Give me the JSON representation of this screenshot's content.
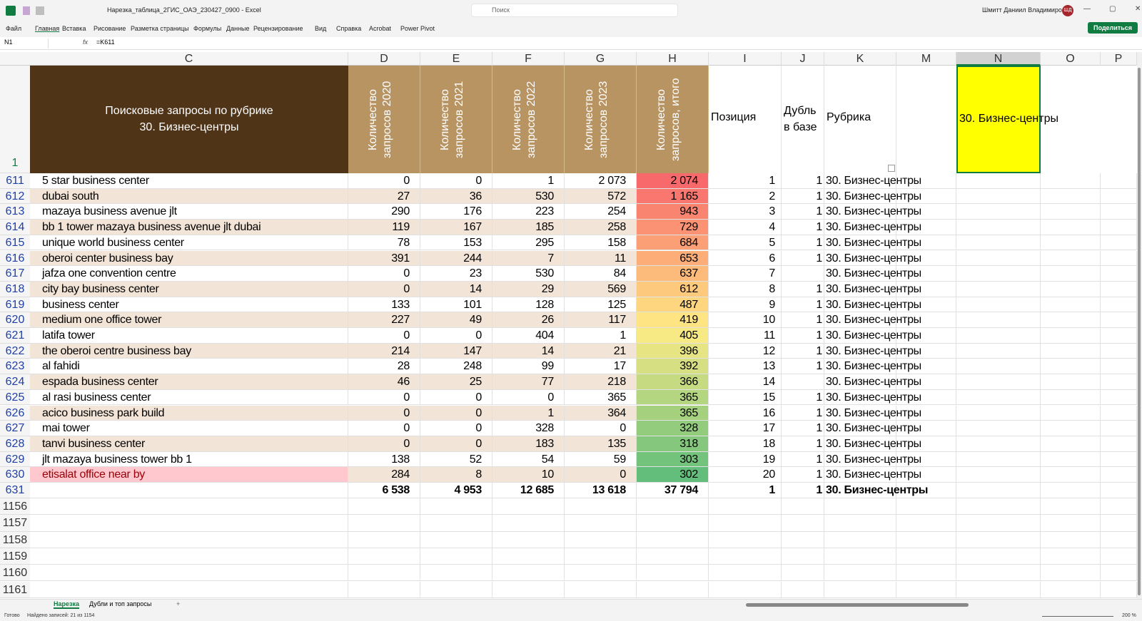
{
  "window": {
    "title": "Нарезка_таблица_2ГИС_ОАЭ_230427_0900  -  Excel",
    "search": "Поиск",
    "user": "Шмитт Даниил Владимирович",
    "avatar": "ШД",
    "share": "Поделиться"
  },
  "ribbon": {
    "tabs": [
      "Файл",
      "Главная",
      "Вставка",
      "Рисование",
      "Разметка страницы",
      "Формулы",
      "Данные",
      "Рецензирование",
      "Вид",
      "Справка",
      "Acrobat",
      "Power Pivot"
    ]
  },
  "formula_bar": {
    "name_box": "N1",
    "fx": "fx",
    "formula": "=K611"
  },
  "sheet": {
    "columns": [
      "C",
      "D",
      "E",
      "F",
      "G",
      "H",
      "I",
      "J",
      "K",
      "M",
      "N",
      "O",
      "P"
    ],
    "header_row": {
      "number": "1",
      "title_lines": [
        "Поисковые запросы по рубрике",
        "30. Бизнес-центры"
      ],
      "counts": [
        "Количество запросов 2020",
        "Количество запросов 2021",
        "Количество запросов 2022",
        "Количество запросов 2023",
        "Количество запросов, итого"
      ],
      "position": "Позиция",
      "duplicate": "Дубль в базе",
      "rubric": "Рубрика",
      "selected": "30. Бизнес-центры"
    },
    "rows": [
      [
        "611",
        "5 star business center",
        "0",
        "0",
        "1",
        "2 073",
        "2 074",
        "1",
        "1",
        "30. Бизнес-центры"
      ],
      [
        "612",
        "dubai south",
        "27",
        "36",
        "530",
        "572",
        "1 165",
        "2",
        "1",
        "30. Бизнес-центры"
      ],
      [
        "613",
        "mazaya business avenue jlt",
        "290",
        "176",
        "223",
        "254",
        "943",
        "3",
        "1",
        "30. Бизнес-центры"
      ],
      [
        "614",
        "bb 1 tower mazaya business avenue jlt dubai",
        "119",
        "167",
        "185",
        "258",
        "729",
        "4",
        "1",
        "30. Бизнес-центры"
      ],
      [
        "615",
        "unique world business center",
        "78",
        "153",
        "295",
        "158",
        "684",
        "5",
        "1",
        "30. Бизнес-центры"
      ],
      [
        "616",
        "oberoi center business bay",
        "391",
        "244",
        "7",
        "11",
        "653",
        "6",
        "1",
        "30. Бизнес-центры"
      ],
      [
        "617",
        "jafza one convention centre",
        "0",
        "23",
        "530",
        "84",
        "637",
        "7",
        null,
        "30. Бизнес-центры"
      ],
      [
        "618",
        "city bay business center",
        "0",
        "14",
        "29",
        "569",
        "612",
        "8",
        "1",
        "30. Бизнес-центры"
      ],
      [
        "619",
        "business center",
        "133",
        "101",
        "128",
        "125",
        "487",
        "9",
        "1",
        "30. Бизнес-центры"
      ],
      [
        "620",
        "medium one office tower",
        "227",
        "49",
        "26",
        "117",
        "419",
        "10",
        "1",
        "30. Бизнес-центры"
      ],
      [
        "621",
        "latifa tower",
        "0",
        "0",
        "404",
        "1",
        "405",
        "11",
        "1",
        "30. Бизнес-центры"
      ],
      [
        "622",
        "the oberoi centre business bay",
        "214",
        "147",
        "14",
        "21",
        "396",
        "12",
        "1",
        "30. Бизнес-центры"
      ],
      [
        "623",
        "al fahidi",
        "28",
        "248",
        "99",
        "17",
        "392",
        "13",
        "1",
        "30. Бизнес-центры"
      ],
      [
        "624",
        "espada business center",
        "46",
        "25",
        "77",
        "218",
        "366",
        "14",
        null,
        "30. Бизнес-центры"
      ],
      [
        "625",
        "al rasi business center",
        "0",
        "0",
        "0",
        "365",
        "365",
        "15",
        "1",
        "30. Бизнес-центры"
      ],
      [
        "626",
        "acico business park build",
        "0",
        "0",
        "1",
        "364",
        "365",
        "16",
        "1",
        "30. Бизнес-центры"
      ],
      [
        "627",
        "mai tower",
        "0",
        "0",
        "328",
        "0",
        "328",
        "17",
        "1",
        "30. Бизнес-центры"
      ],
      [
        "628",
        "tanvi business center",
        "0",
        "0",
        "183",
        "135",
        "318",
        "18",
        "1",
        "30. Бизнес-центры"
      ],
      [
        "629",
        "jlt mazaya business tower bb 1",
        "138",
        "52",
        "54",
        "59",
        "303",
        "19",
        "1",
        "30. Бизнес-центры"
      ],
      [
        "630",
        "etisalat office near by",
        "284",
        "8",
        "10",
        "0",
        "302",
        "20",
        "1",
        "30. Бизнес-центры"
      ]
    ],
    "total_row": [
      "631",
      null,
      "6 538",
      "4 953",
      "12 685",
      "13 618",
      "37 794",
      "1",
      "1",
      "30. Бизнес-центры"
    ],
    "empty_rows": [
      "1156",
      "1157",
      "1158",
      "1159",
      "1160",
      "1161"
    ]
  },
  "sheet_tabs": [
    "Нарезка",
    "Дубли и топ запросы",
    "+"
  ],
  "status_bar": {
    "ready": "Готово",
    "found": "Найдено записей: 21 из 1154",
    "zoom": "200 %"
  }
}
